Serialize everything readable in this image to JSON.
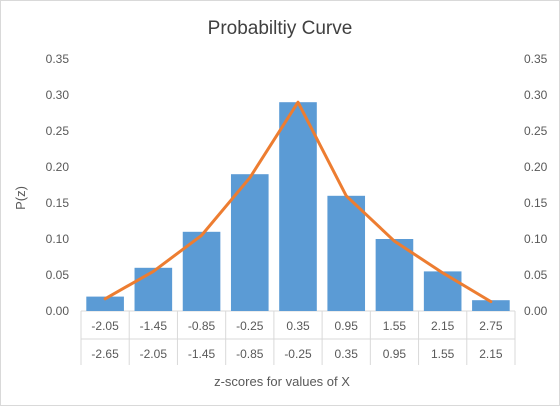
{
  "chart_data": {
    "type": "bar",
    "title": "Probabiltiy Curve",
    "xlabel": "z-scores for values of X",
    "ylabel": "P(z)",
    "ylim": [
      0,
      0.35
    ],
    "yticks": [
      "0.00",
      "0.05",
      "0.10",
      "0.15",
      "0.20",
      "0.25",
      "0.30",
      "0.35"
    ],
    "categories_upper": [
      "2.05",
      "1.45",
      "0.85",
      "0.25",
      "0.35",
      "0.95",
      "1.55",
      "2.15",
      "2.75"
    ],
    "categories_upper_display": [
      "-2.05",
      "-1.45",
      "-0.85",
      "-0.25",
      "0.35",
      "0.95",
      "1.55",
      "2.15",
      "2.75"
    ],
    "categories_lower_display": [
      "-2.65",
      "-2.05",
      "-1.45",
      "-0.85",
      "-0.25",
      "0.35",
      "0.95",
      "1.55",
      "2.15"
    ],
    "series": [
      {
        "type": "bar",
        "values": [
          0.02,
          0.06,
          0.11,
          0.19,
          0.29,
          0.16,
          0.1,
          0.055,
          0.015
        ]
      },
      {
        "type": "line",
        "values": [
          0.017,
          0.055,
          0.105,
          0.185,
          0.29,
          0.16,
          0.097,
          0.053,
          0.013
        ]
      }
    ],
    "grid": false,
    "secondary_y_axis": true,
    "colors": {
      "bar": "#5b9bd5",
      "line": "#ed7d31"
    }
  }
}
